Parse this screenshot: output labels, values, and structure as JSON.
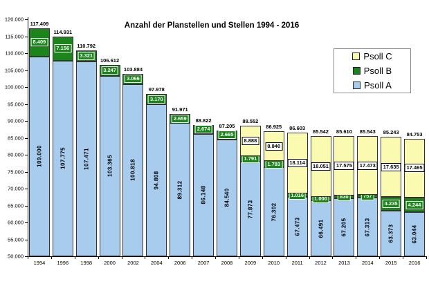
{
  "chart_data": {
    "type": "bar",
    "stacked": true,
    "title": "Anzahl der Planstellen und Stellen 1994 - 2016",
    "grid": false,
    "categories": [
      "1994",
      "1996",
      "1998",
      "2000",
      "2002",
      "2004",
      "2006",
      "2007",
      "2008",
      "2009",
      "2010",
      "2011",
      "2012",
      "2013",
      "2014",
      "2015",
      "2016"
    ],
    "series": [
      {
        "name": "Psoll A",
        "color": "#A8CCEE",
        "values": [
          109000,
          107775,
          107471,
          103365,
          100818,
          94808,
          89312,
          86148,
          84540,
          77873,
          76302,
          67473,
          66491,
          67205,
          67313,
          63373,
          63044
        ],
        "labels": [
          "109.000",
          "107.775",
          "107.471",
          "103.365",
          "100.818",
          "94.808",
          "89.312",
          "86.148",
          "84.540",
          "77.873",
          "76.302",
          "67.473",
          "66.491",
          "67.205",
          "67.313",
          "63.373",
          "63.044"
        ]
      },
      {
        "name": "Psoll B",
        "color": "#1B841B",
        "values": [
          8409,
          7156,
          3321,
          3247,
          3066,
          3170,
          2659,
          2674,
          2665,
          1791,
          1783,
          1016,
          1000,
          830,
          757,
          4235,
          4244
        ],
        "labels": [
          "8.409",
          "7.156",
          "3.321",
          "3.247",
          "3.066",
          "3.170",
          "2.659",
          "2.674",
          "2.665",
          "1.791",
          "1.783",
          "1.016",
          "1.000",
          "830",
          "757",
          "4.235",
          "4.244"
        ]
      },
      {
        "name": "Psoll C",
        "color": "#FAFAB0",
        "values": [
          0,
          0,
          0,
          0,
          0,
          0,
          0,
          0,
          0,
          8888,
          8840,
          18114,
          18051,
          17575,
          17473,
          17635,
          17465
        ],
        "labels": [
          "",
          "",
          "",
          "",
          "",
          "",
          "",
          "",
          "",
          "8.888",
          "8.840",
          "18.114",
          "18.051",
          "17.575",
          "17.473",
          "17.635",
          "17.465"
        ]
      }
    ],
    "totals": {
      "values": [
        117409,
        114931,
        110792,
        106612,
        103884,
        97978,
        91971,
        88822,
        87205,
        88552,
        86925,
        86603,
        85542,
        85610,
        85543,
        85243,
        84753
      ],
      "labels": [
        "117.409",
        "114.931",
        "110.792",
        "106.612",
        "103.884",
        "97.978",
        "91.971",
        "88.822",
        "87.205",
        "88.552",
        "86.925",
        "86.603",
        "85.542",
        "85.610",
        "85.543",
        "85.243",
        "84.753"
      ]
    },
    "y_axis": {
      "min": 50000,
      "max": 120000,
      "step": 5000,
      "tick_labels": [
        "120.000",
        "115.000",
        "110.000",
        "105.000",
        "100.000",
        "95.000",
        "90.000",
        "85.000",
        "80.000",
        "75.000",
        "70.000",
        "65.000",
        "60.000",
        "55.000",
        "50.000"
      ]
    },
    "legend": {
      "position": "right",
      "entries": [
        {
          "label": "Psoll C",
          "color": "#FAFAB0"
        },
        {
          "label": "Psoll B",
          "color": "#1B841B"
        },
        {
          "label": "Psoll A",
          "color": "#A8CCEE"
        }
      ]
    }
  }
}
